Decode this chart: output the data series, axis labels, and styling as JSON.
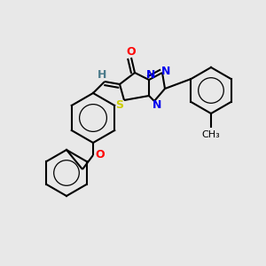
{
  "background_color": "#e8e8e8",
  "bond_color": "#000000",
  "atom_colors": {
    "N": "#0000ee",
    "O": "#ff0000",
    "S": "#cccc00",
    "H": "#4a7a8a"
  },
  "lw": 1.5,
  "font_size": 9
}
